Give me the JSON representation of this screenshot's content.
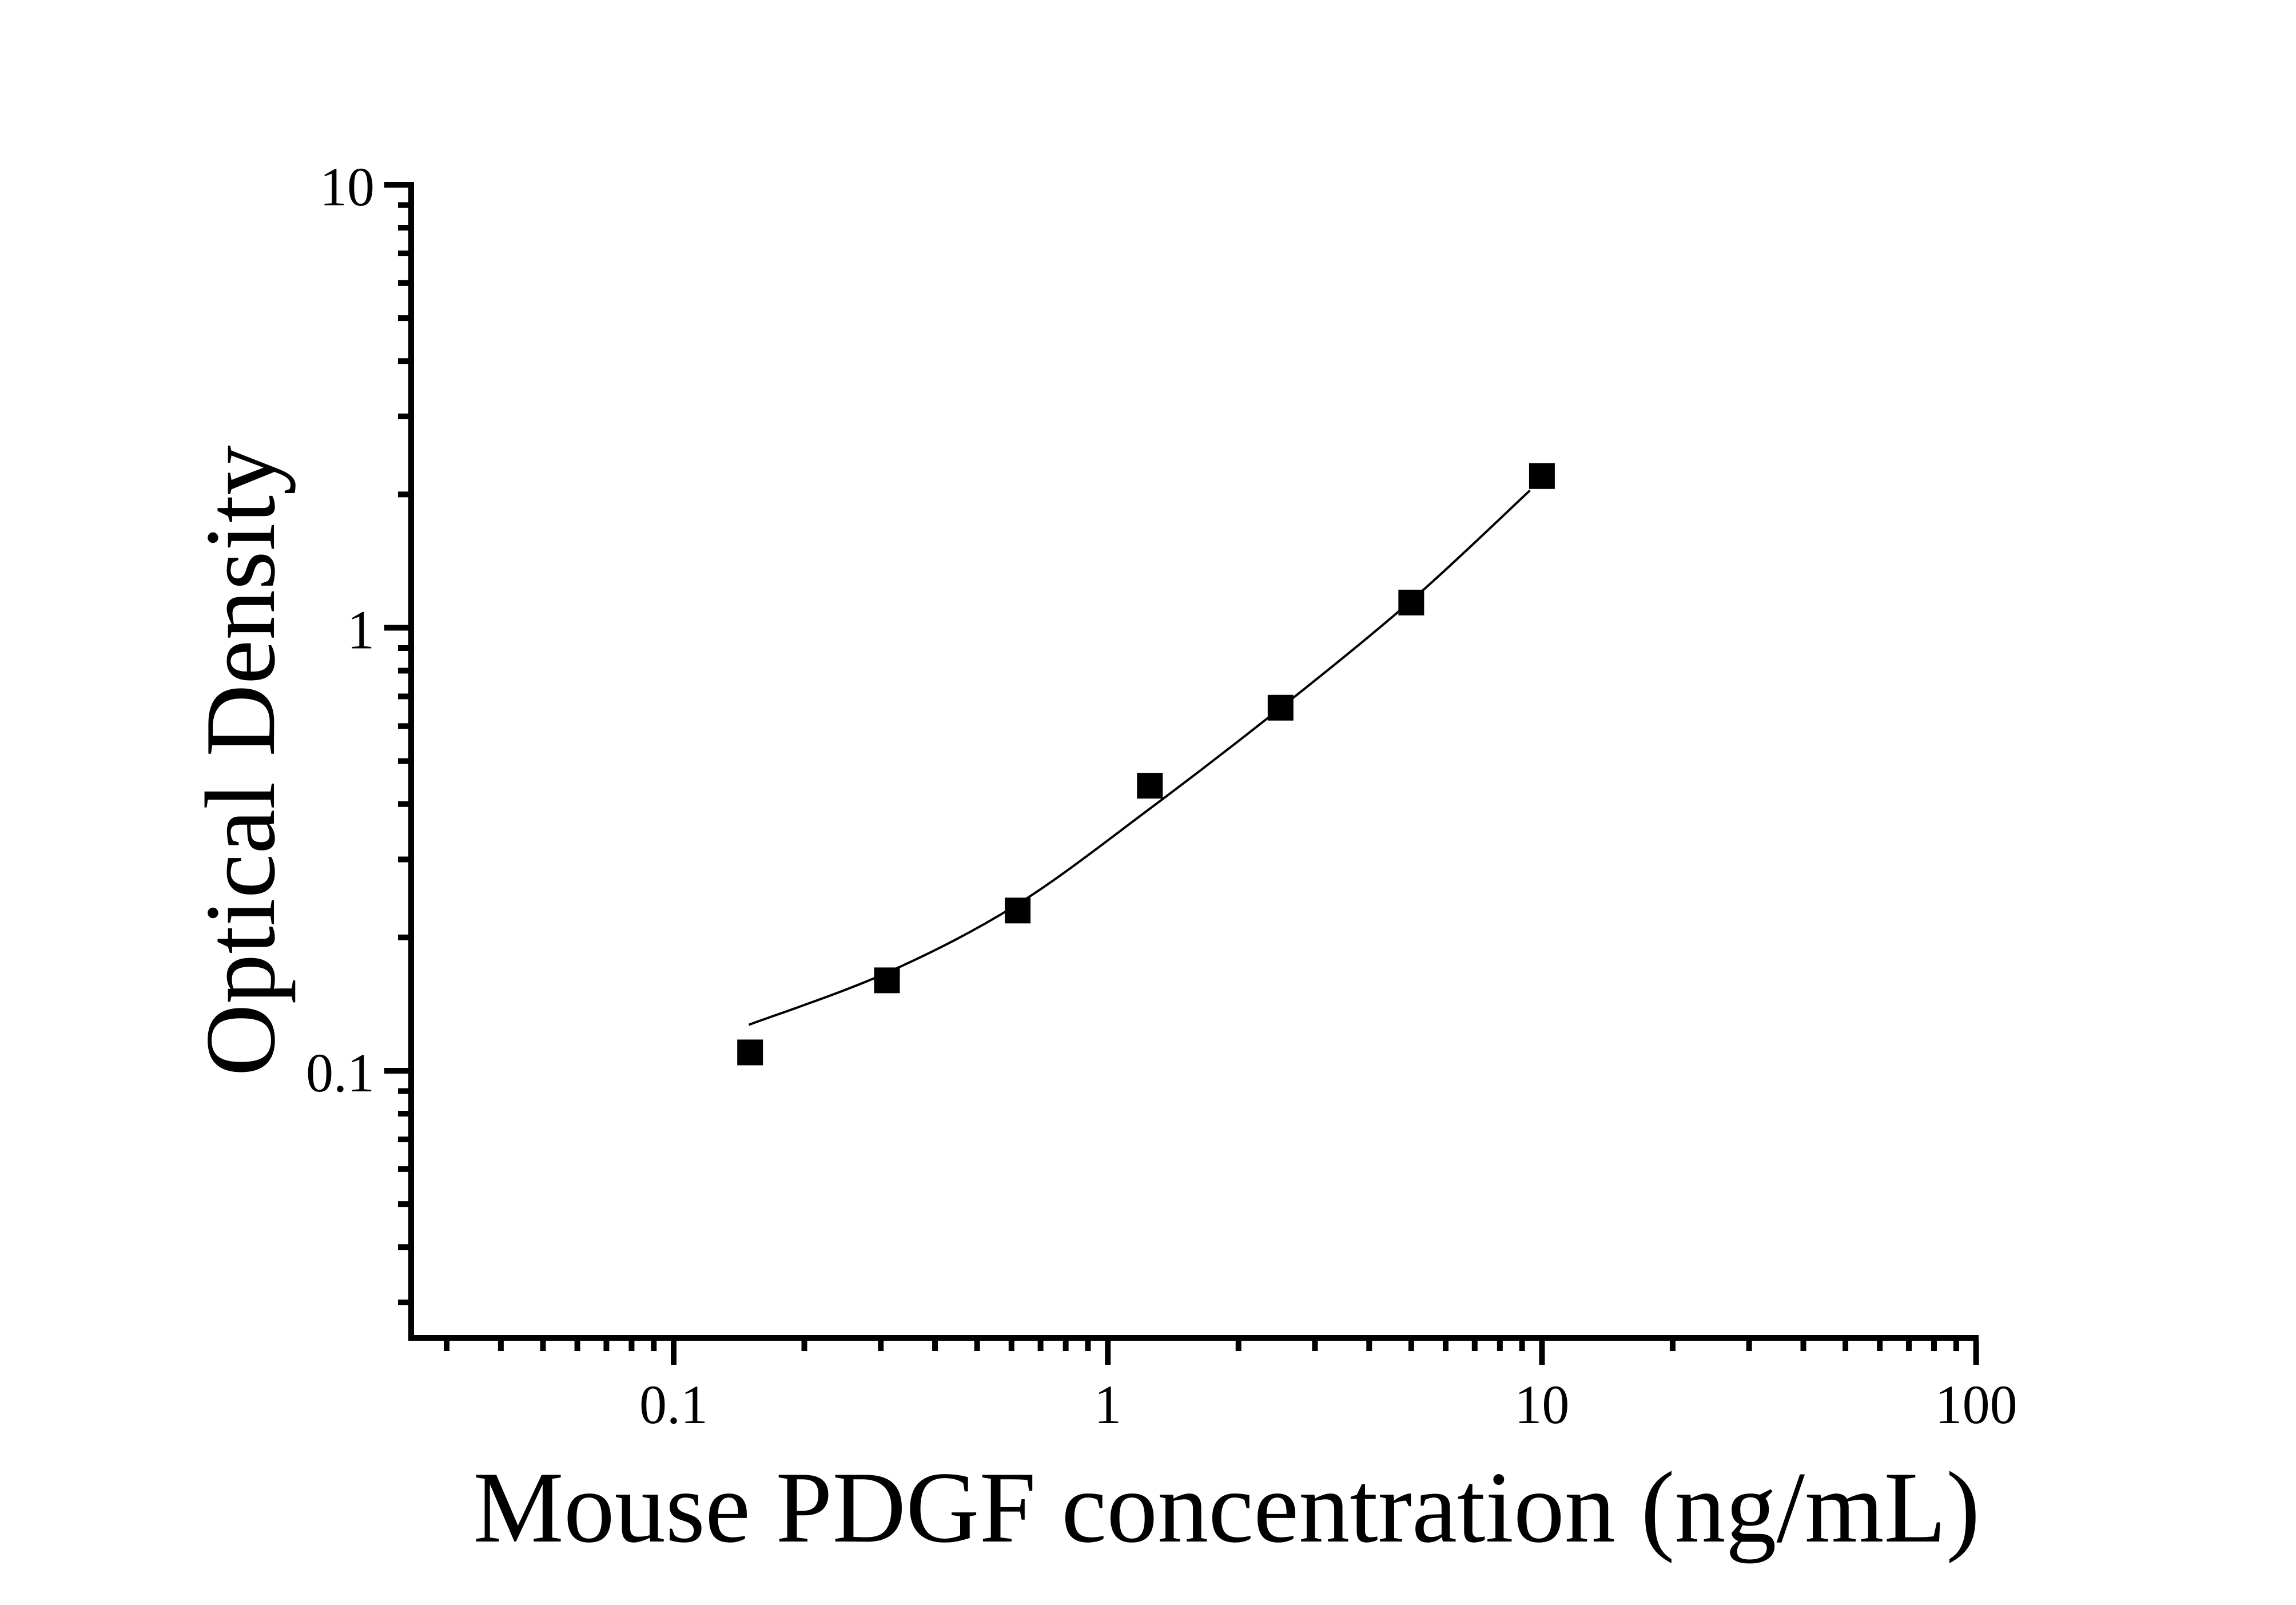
{
  "figure": {
    "background_color": "#ffffff",
    "ink_color": "#000000"
  },
  "chart_data": {
    "type": "scatter",
    "title": "",
    "xlabel": "Mouse PDGF concentration (ng/mL)",
    "ylabel": "Optical Density",
    "x_scale": "log",
    "y_scale": "log",
    "xlim": [
      0.025,
      100
    ],
    "ylim": [
      0.024,
      10
    ],
    "grid": false,
    "legend": false,
    "marker": "filled-square",
    "marker_color": "#000000",
    "curve_color": "#000000",
    "x_major_ticks": [
      {
        "value": 0.1,
        "label": "0.1"
      },
      {
        "value": 1,
        "label": "1"
      },
      {
        "value": 10,
        "label": "10"
      },
      {
        "value": 100,
        "label": "100"
      }
    ],
    "y_major_ticks": [
      {
        "value": 0.1,
        "label": "0.1"
      },
      {
        "value": 1,
        "label": "1"
      },
      {
        "value": 10,
        "label": "10"
      }
    ],
    "series": [
      {
        "name": "",
        "x": [
          0.15,
          0.31,
          0.62,
          1.25,
          2.5,
          5,
          10
        ],
        "y": [
          0.11,
          0.16,
          0.23,
          0.44,
          0.66,
          1.14,
          2.2
        ]
      }
    ],
    "fit_curve": {
      "x": [
        0.149,
        0.308,
        0.617,
        1.252,
        2.493,
        5.007,
        9.385
      ],
      "y": [
        0.127,
        0.166,
        0.237,
        0.391,
        0.658,
        1.153,
        2.042
      ]
    }
  }
}
